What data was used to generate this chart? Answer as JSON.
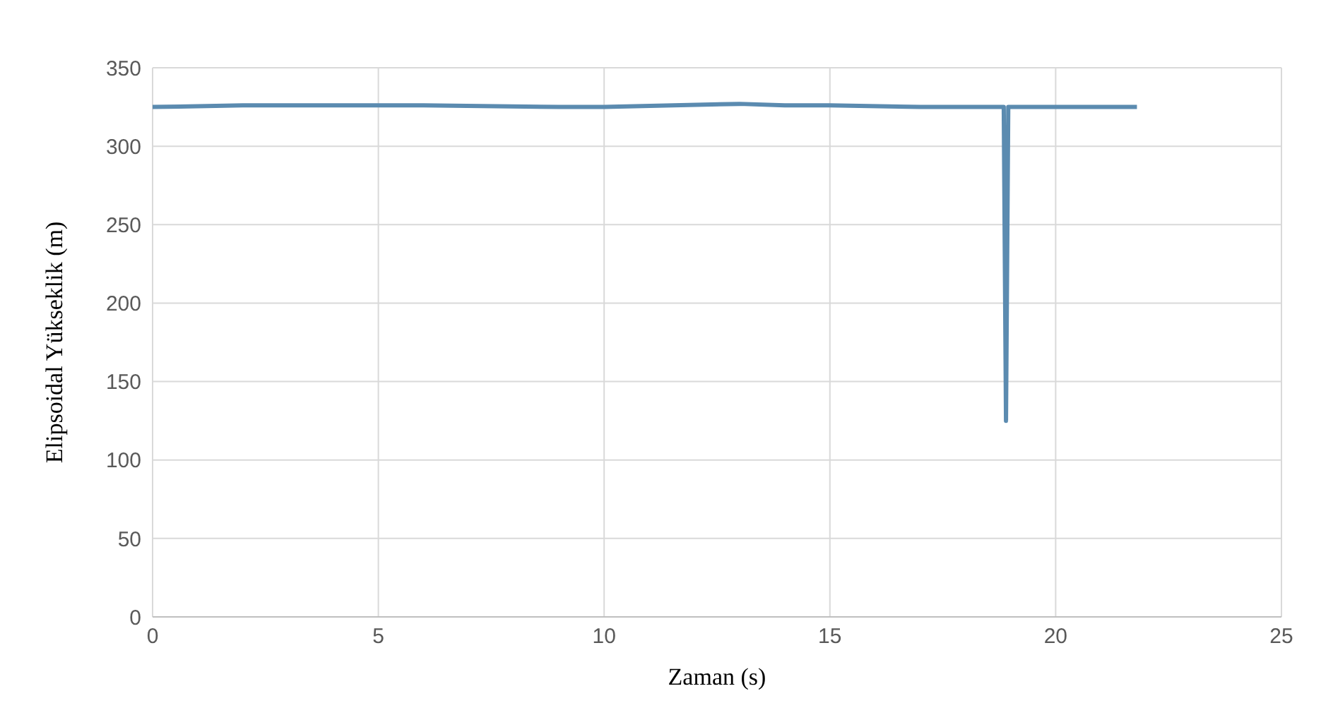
{
  "chart_data": {
    "type": "line",
    "xlabel": "Zaman (s)",
    "ylabel": "Elipsoidal Yükseklik (m)",
    "x": [
      0,
      2,
      6,
      9,
      10,
      13,
      14,
      15,
      17,
      18,
      18.85,
      18.9,
      18.95,
      20,
      21.8
    ],
    "series": [
      {
        "color": "#5b8bb0",
        "values": [
          325,
          326,
          326,
          325,
          325,
          327,
          326,
          326,
          325,
          325,
          325,
          125,
          325,
          325,
          325
        ]
      }
    ],
    "xlim": [
      0,
      25
    ],
    "xticks": [
      0,
      5,
      10,
      15,
      20,
      25
    ],
    "ylim": [
      0,
      350
    ],
    "yticks": [
      0,
      50,
      100,
      150,
      200,
      250,
      300,
      350
    ],
    "grid": true,
    "legend": false,
    "marker": "none",
    "line_style": "solid"
  }
}
